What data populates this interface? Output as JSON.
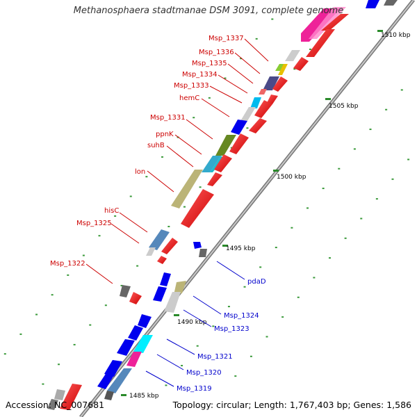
{
  "title": "Methanosphaera stadtmanae DSM 3091, complete genome",
  "accession": "Accession: NC_007681",
  "summary": "Topology: circular; Length: 1,767,403 bp; Genes: 1,586",
  "scale_labels": [
    "1485 kbp",
    "1490 kbp",
    "1495 kbp",
    "1500 kbp",
    "1505 kbp",
    "1510 kbp"
  ],
  "red_gene_labels": [
    "Msp_1337",
    "Msp_1336",
    "Msp_1335",
    "Msp_1334",
    "Msp_1333",
    "hemC",
    "Msp_1331",
    "ppnK",
    "suhB",
    "lon",
    "hisC",
    "Msp_1325",
    "Msp_1322"
  ],
  "blue_gene_labels": [
    "pdaD",
    "Msp_1324",
    "Msp_1323",
    "Msp_1321",
    "Msp_1320",
    "Msp_1319"
  ],
  "colors": {
    "forward_label": "#cc0000",
    "reverse_label": "#0000cc",
    "backbone": "#888888",
    "tick": "#2a8a2a"
  }
}
